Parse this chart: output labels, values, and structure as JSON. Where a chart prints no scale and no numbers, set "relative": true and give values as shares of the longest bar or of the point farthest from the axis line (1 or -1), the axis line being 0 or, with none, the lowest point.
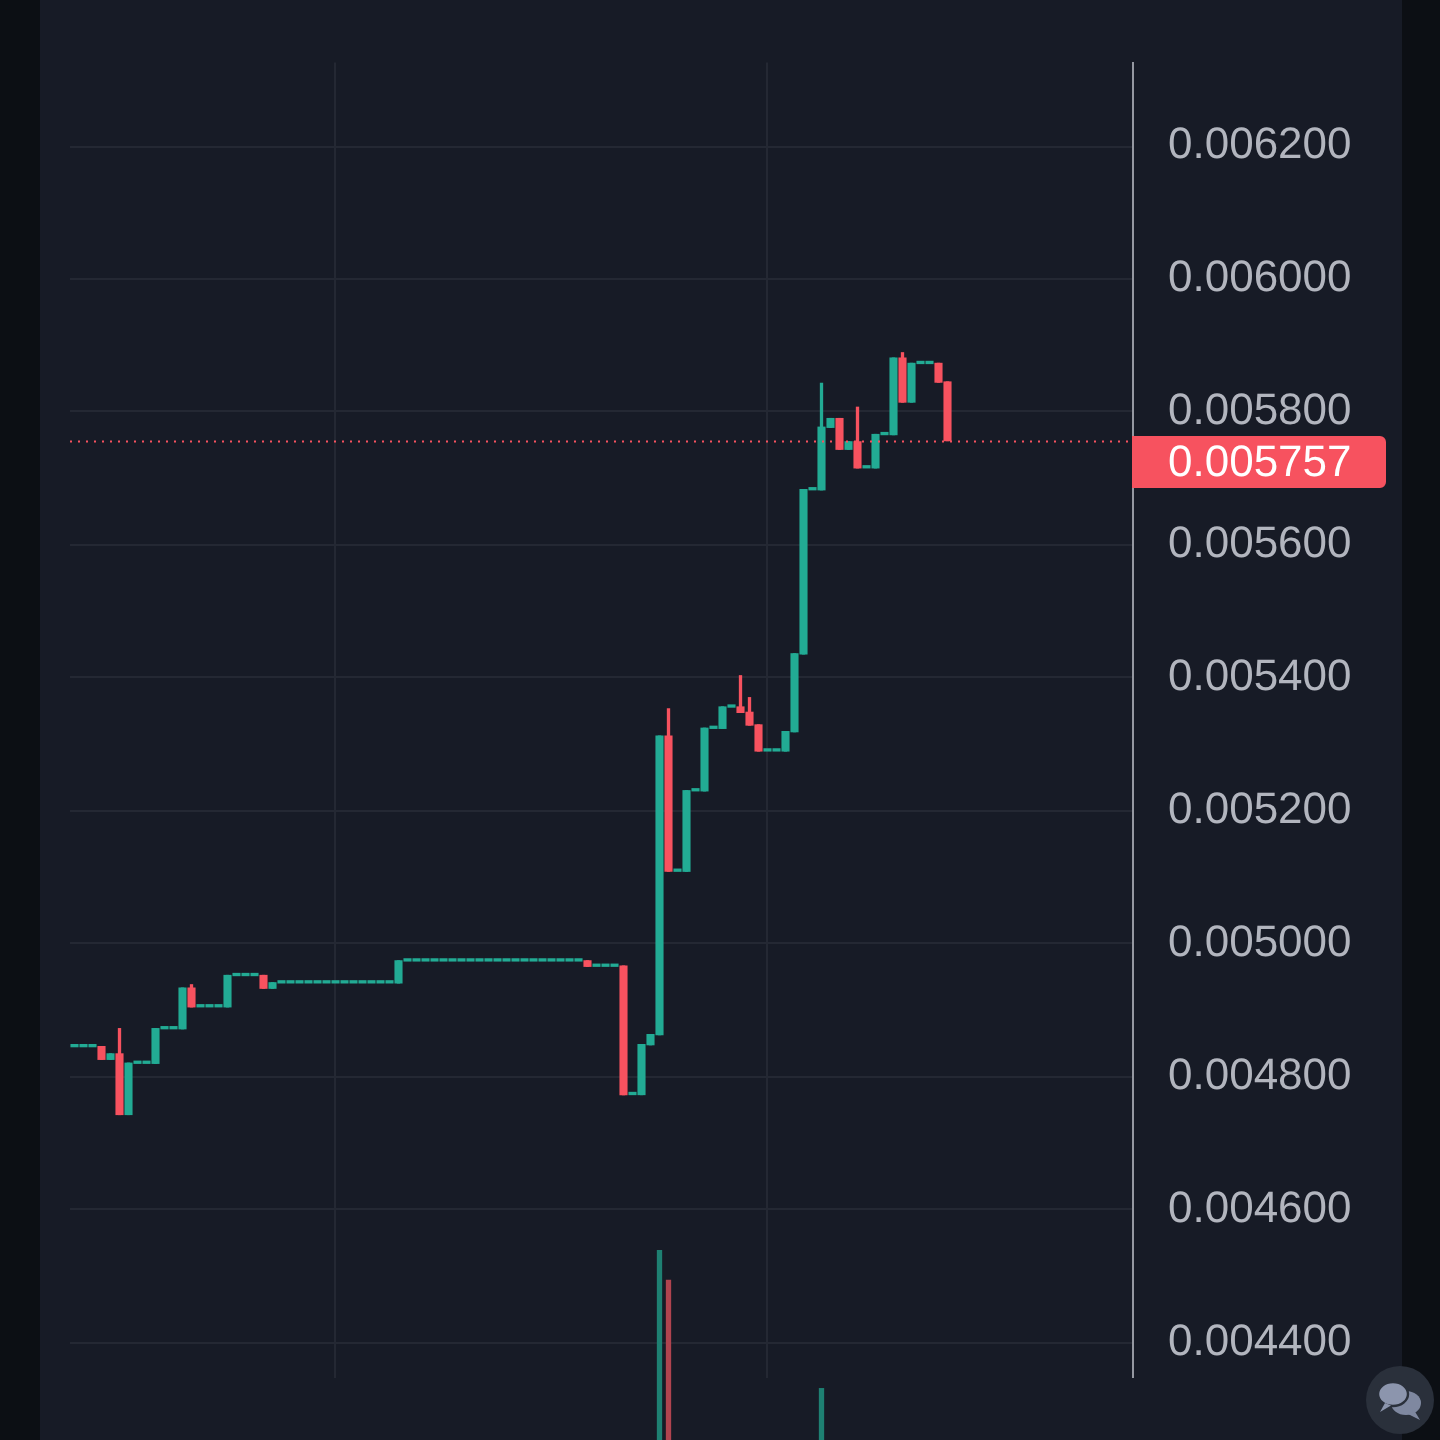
{
  "chart_data": [
    {
      "type": "candlestick",
      "categories": [
        null,
        null,
        null,
        null,
        null,
        null,
        null,
        null,
        null,
        null,
        null,
        null,
        null,
        null,
        null,
        null,
        null,
        null,
        null,
        null,
        null,
        null,
        null,
        null,
        null,
        null,
        null,
        null,
        null,
        null,
        null,
        null,
        null,
        null,
        null,
        null,
        null,
        null,
        null,
        null,
        null,
        null,
        null,
        null,
        null,
        null,
        null,
        null,
        null,
        null,
        null,
        null,
        null,
        null,
        null,
        null,
        null,
        null,
        null,
        null,
        null,
        null,
        null,
        null,
        null,
        null,
        null,
        null,
        null,
        null,
        null,
        null,
        null,
        null,
        null,
        null,
        null,
        null,
        null,
        null,
        null,
        null,
        null,
        null,
        null,
        null,
        null,
        null,
        null,
        null,
        null,
        null,
        null,
        null,
        null,
        null,
        null,
        null,
        null,
        null,
        null,
        null,
        null,
        null,
        null,
        null,
        null,
        null,
        null,
        null,
        null,
        null,
        null,
        null,
        null,
        null,
        null,
        null
      ],
      "ohlc": [
        [
          0.004845,
          0.004845,
          0.004845,
          0.004845
        ],
        [
          0.004845,
          0.004845,
          0.004845,
          0.004845
        ],
        [
          0.004845,
          0.004845,
          0.004845,
          0.004845
        ],
        [
          0.004845,
          0.004845,
          0.004826,
          0.004826
        ],
        [
          0.004826,
          0.004834,
          0.004826,
          0.004834
        ],
        [
          0.004834,
          0.004872,
          0.004743,
          0.004743
        ],
        [
          0.004743,
          0.00482,
          0.004743,
          0.00482
        ],
        [
          0.00482,
          0.00482,
          0.00482,
          0.00482
        ],
        [
          0.00482,
          0.00482,
          0.00482,
          0.00482
        ],
        [
          0.00482,
          0.004872,
          0.00482,
          0.004872
        ],
        [
          0.004872,
          0.004872,
          0.004872,
          0.004872
        ],
        [
          0.004872,
          0.004872,
          0.004872,
          0.004872
        ],
        [
          0.004872,
          0.004933,
          0.004872,
          0.004933
        ],
        [
          0.004933,
          0.004938,
          0.004905,
          0.004905
        ],
        [
          0.004905,
          0.004905,
          0.004905,
          0.004905
        ],
        [
          0.004905,
          0.004905,
          0.004905,
          0.004905
        ],
        [
          0.004905,
          0.004905,
          0.004905,
          0.004905
        ],
        [
          0.004905,
          0.004952,
          0.004905,
          0.004952
        ],
        [
          0.004952,
          0.004952,
          0.004952,
          0.004952
        ],
        [
          0.004952,
          0.004952,
          0.004952,
          0.004952
        ],
        [
          0.004952,
          0.004952,
          0.004952,
          0.004952
        ],
        [
          0.004952,
          0.004952,
          0.004933,
          0.004933
        ],
        [
          0.004933,
          0.004941,
          0.004933,
          0.004941
        ],
        [
          0.004941,
          0.004941,
          0.004941,
          0.004941
        ],
        [
          0.004941,
          0.004941,
          0.004941,
          0.004941
        ],
        [
          0.004941,
          0.004941,
          0.004941,
          0.004941
        ],
        [
          0.004941,
          0.004941,
          0.004941,
          0.004941
        ],
        [
          0.004941,
          0.004941,
          0.004941,
          0.004941
        ],
        [
          0.004941,
          0.004941,
          0.004941,
          0.004941
        ],
        [
          0.004941,
          0.004941,
          0.004941,
          0.004941
        ],
        [
          0.004941,
          0.004941,
          0.004941,
          0.004941
        ],
        [
          0.004941,
          0.004941,
          0.004941,
          0.004941
        ],
        [
          0.004941,
          0.004941,
          0.004941,
          0.004941
        ],
        [
          0.004941,
          0.004941,
          0.004941,
          0.004941
        ],
        [
          0.004941,
          0.004941,
          0.004941,
          0.004941
        ],
        [
          0.004941,
          0.004941,
          0.004941,
          0.004941
        ],
        [
          0.004941,
          0.004974,
          0.004941,
          0.004974
        ],
        [
          0.004974,
          0.004974,
          0.004974,
          0.004974
        ],
        [
          0.004974,
          0.004974,
          0.004974,
          0.004974
        ],
        [
          0.004974,
          0.004974,
          0.004974,
          0.004974
        ],
        [
          0.004974,
          0.004974,
          0.004974,
          0.004974
        ],
        [
          0.004974,
          0.004974,
          0.004974,
          0.004974
        ],
        [
          0.004974,
          0.004974,
          0.004974,
          0.004974
        ],
        [
          0.004974,
          0.004974,
          0.004974,
          0.004974
        ],
        [
          0.004974,
          0.004974,
          0.004974,
          0.004974
        ],
        [
          0.004974,
          0.004974,
          0.004974,
          0.004974
        ],
        [
          0.004974,
          0.004974,
          0.004974,
          0.004974
        ],
        [
          0.004974,
          0.004974,
          0.004974,
          0.004974
        ],
        [
          0.004974,
          0.004974,
          0.004974,
          0.004974
        ],
        [
          0.004974,
          0.004974,
          0.004974,
          0.004974
        ],
        [
          0.004974,
          0.004974,
          0.004974,
          0.004974
        ],
        [
          0.004974,
          0.004974,
          0.004974,
          0.004974
        ],
        [
          0.004974,
          0.004974,
          0.004974,
          0.004974
        ],
        [
          0.004974,
          0.004974,
          0.004974,
          0.004974
        ],
        [
          0.004974,
          0.004974,
          0.004974,
          0.004974
        ],
        [
          0.004974,
          0.004974,
          0.004974,
          0.004974
        ],
        [
          0.004974,
          0.004974,
          0.004974,
          0.004974
        ],
        [
          0.004974,
          0.004974,
          0.004966,
          0.004966
        ],
        [
          0.004966,
          0.004966,
          0.004966,
          0.004966
        ],
        [
          0.004966,
          0.004966,
          0.004966,
          0.004966
        ],
        [
          0.004966,
          0.004966,
          0.004966,
          0.004966
        ],
        [
          0.004966,
          0.004966,
          0.004773,
          0.004773
        ],
        [
          0.004773,
          0.004773,
          0.004773,
          0.004773
        ],
        [
          0.004773,
          0.004848,
          0.004773,
          0.004848
        ],
        [
          0.004848,
          0.004863,
          0.004848,
          0.004863
        ],
        [
          0.004863,
          0.005312,
          0.004863,
          0.005312
        ],
        [
          0.005312,
          0.005353,
          0.005109,
          0.005109
        ],
        [
          0.005109,
          0.005109,
          0.005109,
          0.005109
        ],
        [
          0.005109,
          0.00523,
          0.005109,
          0.00523
        ],
        [
          0.00523,
          0.00523,
          0.00523,
          0.00523
        ],
        [
          0.00523,
          0.005324,
          0.00523,
          0.005324
        ],
        [
          0.005324,
          0.005324,
          0.005324,
          0.005324
        ],
        [
          0.005324,
          0.005356,
          0.005324,
          0.005356
        ],
        [
          0.005356,
          0.005356,
          0.005356,
          0.005356
        ],
        [
          0.005356,
          0.005403,
          0.005348,
          0.005348
        ],
        [
          0.005348,
          0.00537,
          0.005329,
          0.005329
        ],
        [
          0.005329,
          0.005329,
          0.00529,
          0.00529
        ],
        [
          0.00529,
          0.00529,
          0.00529,
          0.00529
        ],
        [
          0.00529,
          0.00529,
          0.00529,
          0.00529
        ],
        [
          0.00529,
          0.005319,
          0.00529,
          0.005319
        ],
        [
          0.005319,
          0.005436,
          0.005319,
          0.005436
        ],
        [
          0.005436,
          0.005683,
          0.005436,
          0.005683
        ],
        [
          0.005683,
          0.005683,
          0.005683,
          0.005683
        ],
        [
          0.005683,
          0.005843,
          0.005683,
          0.005777
        ],
        [
          0.005777,
          0.00579,
          0.005777,
          0.00579
        ],
        [
          0.00579,
          0.00579,
          0.005744,
          0.005744
        ],
        [
          0.005744,
          0.005755,
          0.005744,
          0.005755
        ],
        [
          0.005755,
          0.005807,
          0.005716,
          0.005716
        ],
        [
          0.005716,
          0.005716,
          0.005716,
          0.005716
        ],
        [
          0.005716,
          0.005766,
          0.005716,
          0.005766
        ],
        [
          0.005766,
          0.005766,
          0.005766,
          0.005766
        ],
        [
          0.005766,
          0.005881,
          0.005766,
          0.005881
        ],
        [
          0.005881,
          0.005889,
          0.005815,
          0.005815
        ],
        [
          0.005815,
          0.005873,
          0.005815,
          0.005873
        ],
        [
          0.005873,
          0.005873,
          0.005873,
          0.005873
        ],
        [
          0.005873,
          0.005873,
          0.005873,
          0.005873
        ],
        [
          0.005873,
          0.005873,
          0.005845,
          0.005845
        ],
        [
          0.005845,
          0.005845,
          0.005757,
          0.005757
        ],
        null,
        null,
        null,
        null,
        null,
        null,
        null,
        null,
        null,
        null,
        null,
        null,
        null,
        null,
        null,
        null,
        null,
        null,
        null,
        null
      ],
      "colors": [
        "#22ab94",
        "#22ab94",
        "#22ab94",
        "#f7525f",
        "#22ab94",
        "#f7525f",
        "#22ab94",
        "#22ab94",
        "#22ab94",
        "#22ab94",
        "#22ab94",
        "#22ab94",
        "#22ab94",
        "#f7525f",
        "#22ab94",
        "#22ab94",
        "#22ab94",
        "#22ab94",
        "#22ab94",
        "#22ab94",
        "#22ab94",
        "#f7525f",
        "#22ab94",
        "#22ab94",
        "#22ab94",
        "#22ab94",
        "#22ab94",
        "#22ab94",
        "#22ab94",
        "#22ab94",
        "#22ab94",
        "#22ab94",
        "#22ab94",
        "#22ab94",
        "#22ab94",
        "#22ab94",
        "#22ab94",
        "#22ab94",
        "#22ab94",
        "#22ab94",
        "#22ab94",
        "#22ab94",
        "#22ab94",
        "#22ab94",
        "#22ab94",
        "#22ab94",
        "#22ab94",
        "#22ab94",
        "#22ab94",
        "#22ab94",
        "#22ab94",
        "#22ab94",
        "#22ab94",
        "#22ab94",
        "#22ab94",
        "#22ab94",
        "#22ab94",
        "#f7525f",
        "#22ab94",
        "#22ab94",
        "#22ab94",
        "#f7525f",
        "#22ab94",
        "#22ab94",
        "#22ab94",
        "#22ab94",
        "#f7525f",
        "#22ab94",
        "#22ab94",
        "#22ab94",
        "#22ab94",
        "#22ab94",
        "#22ab94",
        "#22ab94",
        "#f7525f",
        "#f7525f",
        "#f7525f",
        "#22ab94",
        "#22ab94",
        "#22ab94",
        "#22ab94",
        "#22ab94",
        "#22ab94",
        "#22ab94",
        "#22ab94",
        "#f7525f",
        "#22ab94",
        "#f7525f",
        "#22ab94",
        "#22ab94",
        "#22ab94",
        "#22ab94",
        "#f7525f",
        "#22ab94",
        "#22ab94",
        "#22ab94",
        "#f7525f",
        "#f7525f",
        null,
        null,
        null,
        null,
        null,
        null,
        null,
        null,
        null,
        null,
        null,
        null,
        null,
        null,
        null,
        null,
        null,
        null,
        null,
        null
      ],
      "ylim": [
        0.004347,
        0.006326
      ],
      "yticks": [
        {
          "value": 0.0044,
          "label": "0.004400"
        },
        {
          "value": 0.0046,
          "label": "0.004600"
        },
        {
          "value": 0.0048,
          "label": "0.004800"
        },
        {
          "value": 0.005,
          "label": "0.005000"
        },
        {
          "value": 0.0052,
          "label": "0.005200"
        },
        {
          "value": 0.0054,
          "label": "0.005400"
        },
        {
          "value": 0.0056,
          "label": "0.005600"
        },
        {
          "value": 0.0058,
          "label": "0.005800"
        },
        {
          "value": 0.006,
          "label": "0.006000"
        },
        {
          "value": 0.0062,
          "label": "0.006200"
        }
      ],
      "grid": true,
      "ref_lines": [
        {
          "axis": "y",
          "value": 0.005757,
          "label": "0.005757",
          "color": "#f7525f",
          "line_style": "dotted"
        }
      ]
    },
    {
      "type": "bar",
      "relative": true,
      "categories": [
        null,
        null,
        null,
        null,
        null,
        null,
        null,
        null,
        null,
        null,
        null,
        null,
        null,
        null,
        null,
        null,
        null,
        null,
        null,
        null,
        null,
        null,
        null,
        null,
        null,
        null,
        null,
        null,
        null,
        null,
        null,
        null,
        null,
        null,
        null,
        null,
        null,
        null,
        null,
        null,
        null,
        null,
        null,
        null,
        null,
        null,
        null,
        null,
        null,
        null,
        null,
        null,
        null,
        null,
        null,
        null,
        null,
        null,
        null,
        null,
        null,
        null,
        null,
        null,
        null,
        null,
        null,
        null,
        null,
        null,
        null,
        null,
        null,
        null,
        null,
        null,
        null,
        null,
        null,
        null,
        null,
        null,
        null,
        null,
        null,
        null,
        null,
        null,
        null,
        null,
        null,
        null,
        null,
        null,
        null,
        null,
        null,
        null,
        null,
        null,
        null,
        null,
        null,
        null,
        null,
        null,
        null,
        null,
        null,
        null,
        null,
        null,
        null,
        null,
        null,
        null,
        null,
        null
      ],
      "values": [
        null,
        null,
        null,
        null,
        null,
        null,
        null,
        null,
        null,
        null,
        null,
        null,
        null,
        null,
        null,
        null,
        null,
        null,
        null,
        null,
        null,
        null,
        null,
        null,
        null,
        null,
        null,
        null,
        null,
        null,
        null,
        null,
        null,
        null,
        null,
        null,
        null,
        null,
        null,
        null,
        null,
        null,
        null,
        null,
        null,
        null,
        null,
        null,
        null,
        null,
        null,
        null,
        null,
        null,
        null,
        null,
        null,
        null,
        null,
        null,
        null,
        null,
        null,
        null,
        null,
        1,
        0.84,
        null,
        null,
        null,
        null,
        null,
        null,
        null,
        null,
        null,
        null,
        null,
        null,
        null,
        null,
        null,
        null,
        0.27,
        null,
        null,
        null,
        null,
        null,
        null,
        null,
        null,
        null,
        null,
        null,
        null,
        null,
        null,
        null,
        null,
        null,
        null,
        null,
        null,
        null,
        null,
        null,
        null,
        null,
        null,
        null,
        null,
        null,
        null,
        null,
        null,
        null,
        null
      ],
      "colors": [
        null,
        null,
        null,
        null,
        null,
        null,
        null,
        null,
        null,
        null,
        null,
        null,
        null,
        null,
        null,
        null,
        null,
        null,
        null,
        null,
        null,
        null,
        null,
        null,
        null,
        null,
        null,
        null,
        null,
        null,
        null,
        null,
        null,
        null,
        null,
        null,
        null,
        null,
        null,
        null,
        null,
        null,
        null,
        null,
        null,
        null,
        null,
        null,
        null,
        null,
        null,
        null,
        null,
        null,
        null,
        null,
        null,
        null,
        null,
        null,
        null,
        null,
        null,
        null,
        null,
        "#1e8072",
        "#b0444f",
        null,
        null,
        null,
        null,
        null,
        null,
        null,
        null,
        null,
        null,
        null,
        null,
        null,
        null,
        null,
        null,
        "#1e8072",
        null,
        null,
        null,
        null,
        null,
        null,
        null,
        null,
        null,
        null,
        null,
        null,
        null,
        null,
        null,
        null,
        null,
        null,
        null,
        null,
        null,
        null,
        null,
        null,
        null,
        null,
        null,
        null,
        null,
        null,
        null,
        null,
        null,
        null
      ]
    }
  ]
}
